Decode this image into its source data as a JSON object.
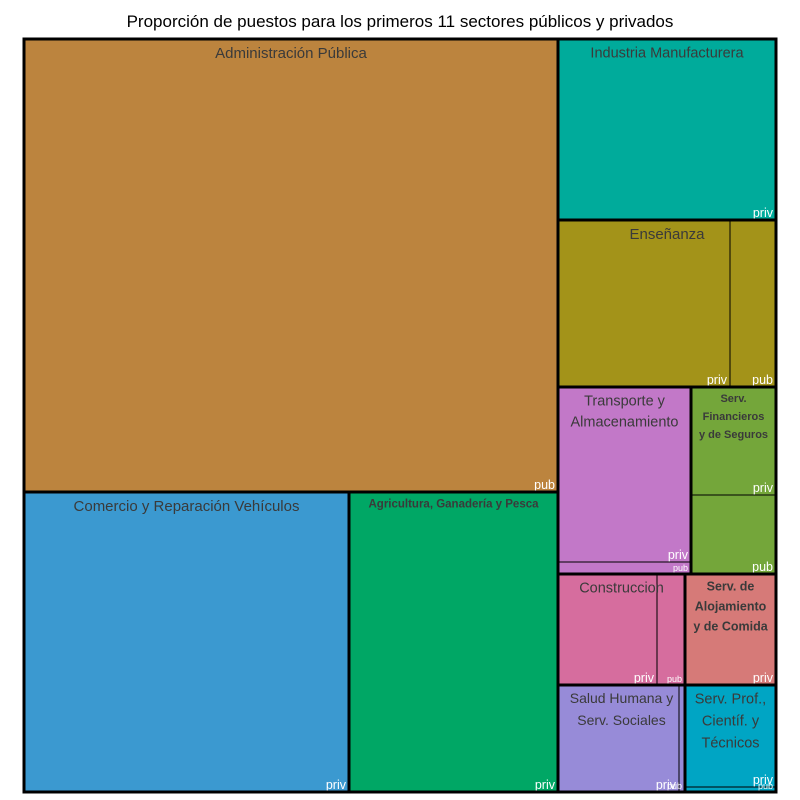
{
  "chart_data": {
    "type": "treemap",
    "title": "Proporción de puestos para los primeros 11 sectores públicos y privados",
    "sectors": [
      {
        "name": "Administración Pública",
        "color": "#bc843e",
        "children": [
          {
            "label": "pub",
            "value": 24250
          }
        ]
      },
      {
        "name": "Comercio y Reparación Vehículos",
        "color": "#3b99d0",
        "children": [
          {
            "label": "priv",
            "value": 9140
          }
        ]
      },
      {
        "name": "Agricultura, Ganadería y Pesca",
        "color": "#00a765",
        "children": [
          {
            "label": "priv",
            "value": 5800
          }
        ]
      },
      {
        "name": "Industria Manufacturera",
        "color": "#00ab9b",
        "children": [
          {
            "label": "priv",
            "value": 3950
          }
        ]
      },
      {
        "name": "Enseñanza",
        "color": "#a39319",
        "children": [
          {
            "label": "priv",
            "value": 2890
          },
          {
            "label": "pub",
            "value": 780
          }
        ]
      },
      {
        "name": "Transporte y Almacenamiento",
        "color": "#c278c8",
        "children": [
          {
            "label": "priv",
            "value": 2310
          },
          {
            "label": "pub",
            "value": 160
          }
        ]
      },
      {
        "name": "Serv. Financieros y de Seguros",
        "color": "#74a63a",
        "children": [
          {
            "label": "priv",
            "value": 1470
          },
          {
            "label": "pub",
            "value": 1070
          }
        ]
      },
      {
        "name": "Construccion",
        "color": "#d66d9e",
        "children": [
          {
            "label": "priv",
            "value": 1370
          },
          {
            "label": "pub",
            "value": 380
          }
        ]
      },
      {
        "name": "Serv. de Alojamiento y de Comida",
        "color": "#d67a78",
        "children": [
          {
            "label": "priv",
            "value": 1550
          }
        ]
      },
      {
        "name": "Salud Humana y Serv. Sociales",
        "color": "#978bd8",
        "children": [
          {
            "label": "priv",
            "value": 1540
          },
          {
            "label": "pub",
            "value": 70
          }
        ]
      },
      {
        "name": "Serv. Prof., Científ. y Técnicos",
        "color": "#00a5c4",
        "children": [
          {
            "label": "priv",
            "value": 1350
          },
          {
            "label": "pub",
            "value": 70
          }
        ]
      }
    ]
  }
}
